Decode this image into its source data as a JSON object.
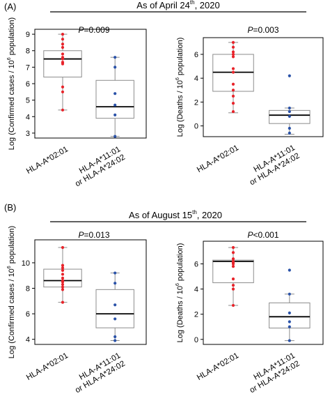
{
  "panels": [
    {
      "label": "(A)",
      "title_main": "As of April 24",
      "title_sup": "th",
      "title_tail": ", 2020"
    },
    {
      "label": "(B)",
      "title_main": "As of August 15",
      "title_sup": "th",
      "title_tail": ", 2020"
    }
  ],
  "colors": {
    "hla_a0201_points": "#e8232a",
    "other_points": "#2a52a8",
    "box_edge": "#8c8c8c",
    "median": "#000000"
  },
  "chart_data": [
    {
      "type": "box",
      "pvalue_label": "P",
      "pvalue_text": "=0.009",
      "ylabel_pre": "Log (Confirmed cases / 10",
      "ylabel_sup": "6",
      "ylabel_post": " population)",
      "ylim": [
        2.7,
        9.3
      ],
      "yticks": [
        3,
        4,
        5,
        6,
        7,
        8,
        9
      ],
      "categories": [
        "HLA-A*02:01",
        "HLA-A*11:01\nor HLA-A*24:02"
      ],
      "groups": [
        {
          "name": "HLA-A*02:01",
          "q1": 6.4,
          "median": 7.5,
          "q3": 8.0,
          "whisker_low": 4.4,
          "whisker_high": 9.0,
          "points": [
            9.0,
            8.7,
            8.4,
            8.2,
            7.8,
            7.6,
            7.5,
            7.3,
            7.2,
            5.8,
            5.5,
            4.4
          ]
        },
        {
          "name": "HLA-A*11:01 or HLA-A*24:02",
          "q1": 3.9,
          "median": 4.6,
          "q3": 6.2,
          "whisker_low": 2.8,
          "whisker_high": 7.6,
          "points": [
            7.6,
            7.0,
            5.4,
            4.7,
            4.1,
            2.8
          ]
        }
      ]
    },
    {
      "type": "box",
      "pvalue_label": "P",
      "pvalue_text": "=0.003",
      "ylabel_pre": "Log (Deaths / 10",
      "ylabel_sup": "6",
      "ylabel_post": " population)",
      "ylim": [
        -0.9,
        7.4
      ],
      "yticks": [
        0,
        2,
        4,
        6
      ],
      "categories": [
        "HLA-A*02:01",
        "HLA-A*11:01\nor HLA-A*24:02"
      ],
      "groups": [
        {
          "name": "HLA-A*02:01",
          "q1": 2.9,
          "median": 4.5,
          "q3": 6.0,
          "whisker_low": 1.1,
          "whisker_high": 7.0,
          "points": [
            7.0,
            6.6,
            6.2,
            6.0,
            5.8,
            4.8,
            4.5,
            3.5,
            3.0,
            2.5,
            1.9,
            1.2
          ]
        },
        {
          "name": "HLA-A*11:01 or HLA-A*24:02",
          "q1": 0.2,
          "median": 0.9,
          "q3": 1.3,
          "whisker_low": -0.7,
          "whisker_high": 1.5,
          "points": [
            4.2,
            1.5,
            1.2,
            0.8,
            -0.2,
            -0.6
          ]
        }
      ]
    },
    {
      "type": "box",
      "pvalue_label": "P",
      "pvalue_text": "=0.013",
      "ylabel_pre": "Log (Confirmed cases / 10",
      "ylabel_sup": "6",
      "ylabel_post": " population)",
      "ylim": [
        3.6,
        11.8
      ],
      "yticks": [
        4,
        6,
        8,
        10
      ],
      "categories": [
        "HLA-A*02:01",
        "HLA-A*11:01\nor HLA-A*24:02"
      ],
      "groups": [
        {
          "name": "HLA-A*02:01",
          "q1": 8.1,
          "median": 8.6,
          "q3": 9.5,
          "whisker_low": 6.9,
          "whisker_high": 11.2,
          "points": [
            11.2,
            9.8,
            9.6,
            9.4,
            9.1,
            8.8,
            8.6,
            8.5,
            8.3,
            8.1,
            7.9,
            6.9
          ]
        },
        {
          "name": "HLA-A*11:01 or HLA-A*24:02",
          "q1": 4.9,
          "median": 6.0,
          "q3": 7.9,
          "whisker_low": 3.9,
          "whisker_high": 9.2,
          "points": [
            9.2,
            8.4,
            6.7,
            5.6,
            4.2,
            3.9
          ]
        }
      ]
    },
    {
      "type": "box",
      "pvalue_label": "P",
      "pvalue_text": "<0.001",
      "ylabel_pre": "Log (Deaths / 10",
      "ylabel_sup": "6",
      "ylabel_post": " population)",
      "ylim": [
        -0.4,
        7.8
      ],
      "yticks": [
        0,
        2,
        4,
        6
      ],
      "categories": [
        "HLA-A*02:01",
        "HLA-A*11:01\nor HLA-A*24:02"
      ],
      "groups": [
        {
          "name": "HLA-A*02:01",
          "q1": 4.5,
          "median": 6.2,
          "q3": 6.3,
          "whisker_low": 2.7,
          "whisker_high": 7.3,
          "points": [
            7.3,
            6.9,
            6.4,
            6.2,
            6.1,
            6.0,
            5.8,
            4.8,
            4.3,
            4.0,
            2.7
          ]
        },
        {
          "name": "HLA-A*11:01 or HLA-A*24:02",
          "q1": 0.9,
          "median": 1.8,
          "q3": 2.9,
          "whisker_low": -0.1,
          "whisker_high": 3.6,
          "points": [
            5.5,
            3.6,
            2.1,
            1.4,
            1.0,
            -0.1
          ]
        }
      ]
    }
  ]
}
